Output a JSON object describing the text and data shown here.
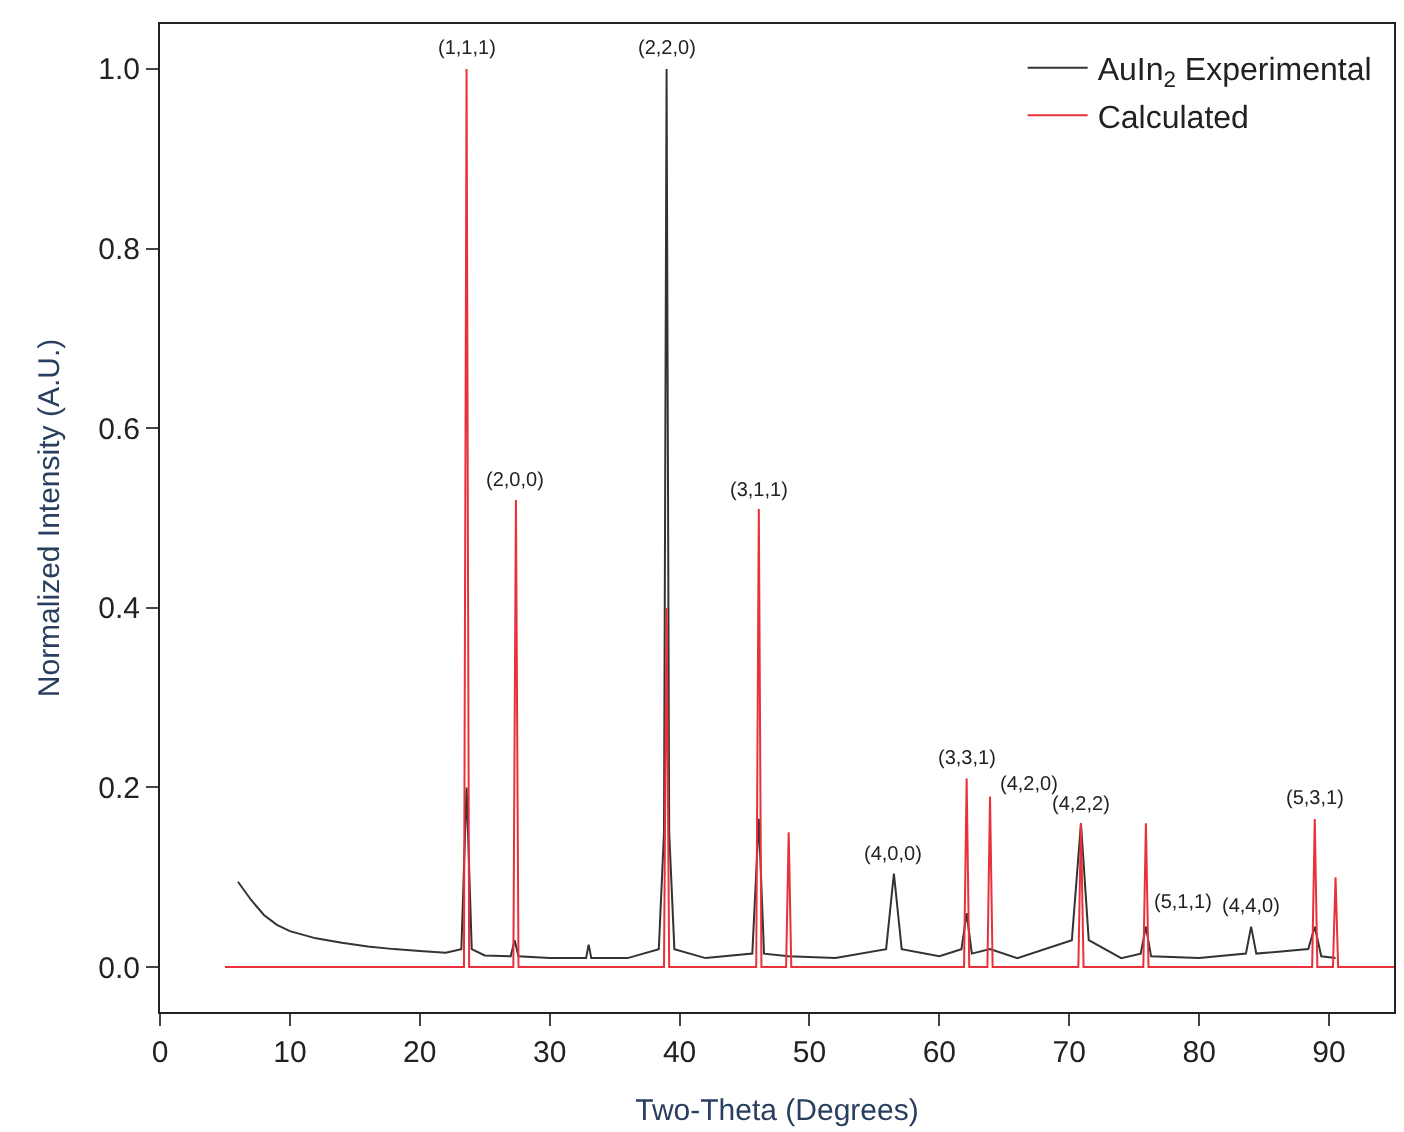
{
  "chart_data": {
    "type": "line",
    "xlabel": "Two-Theta (Degrees)",
    "ylabel": "Normalized Intensity (A.U.)",
    "xlim": [
      0,
      95
    ],
    "xticks": [
      0,
      10,
      20,
      30,
      40,
      50,
      60,
      70,
      80,
      90
    ],
    "ylim": [
      -0.05,
      1.05
    ],
    "yticks": [
      {
        "value": 0,
        "label": "0.0"
      },
      {
        "value": 0.2,
        "label": "0.2"
      },
      {
        "value": 0.4,
        "label": "0.4"
      },
      {
        "value": 0.6,
        "label": "0.6"
      },
      {
        "value": 0.8,
        "label": "0.8"
      },
      {
        "value": 1,
        "label": "1.0"
      }
    ],
    "legend": "top right",
    "marker": "none",
    "line_style": "solid",
    "series": [
      {
        "name": "AuIn$_{2}$ Experimental",
        "color": "#333333",
        "x": [
          6,
          7,
          8,
          9,
          10,
          12,
          14,
          16,
          18,
          20,
          22,
          23.2,
          23.6,
          24.0,
          25,
          27.0,
          27.3,
          27.6,
          30,
          32.8,
          33.0,
          33.2,
          36,
          38.4,
          38.8,
          39.0,
          39.2,
          39.6,
          42,
          45.6,
          46.1,
          46.5,
          48.4,
          52,
          55.9,
          56.5,
          57.1,
          60,
          61.7,
          62.1,
          62.5,
          63.9,
          66,
          70.2,
          70.9,
          71.5,
          74,
          75.5,
          75.9,
          76.3,
          80,
          83.6,
          84.0,
          84.4,
          88.4,
          88.9,
          89.4,
          90.5
        ],
        "values": [
          0.095,
          0.075,
          0.058,
          0.047,
          0.04,
          0.032,
          0.027,
          0.023,
          0.02,
          0.018,
          0.016,
          0.02,
          0.2,
          0.02,
          0.013,
          0.012,
          0.03,
          0.012,
          0.01,
          0.01,
          0.025,
          0.01,
          0.01,
          0.02,
          0.15,
          1.0,
          0.15,
          0.02,
          0.01,
          0.015,
          0.165,
          0.015,
          0.012,
          0.01,
          0.02,
          0.104,
          0.02,
          0.012,
          0.02,
          0.06,
          0.015,
          0.02,
          0.01,
          0.03,
          0.16,
          0.03,
          0.01,
          0.015,
          0.045,
          0.012,
          0.01,
          0.015,
          0.045,
          0.015,
          0.02,
          0.045,
          0.012,
          0.01
        ]
      },
      {
        "name": "Calculated",
        "color": "#e8313a",
        "x": [
          5,
          23.4,
          23.6,
          23.8,
          27.2,
          27.4,
          27.6,
          38.8,
          39.0,
          39.2,
          45.9,
          46.1,
          46.3,
          48.2,
          48.4,
          48.6,
          61.9,
          62.1,
          62.3,
          63.7,
          63.9,
          64.1,
          70.7,
          70.9,
          71.1,
          75.7,
          75.9,
          76.1,
          88.7,
          88.9,
          89.1,
          90.3,
          90.5,
          90.7,
          95
        ],
        "values": [
          0,
          0,
          1.0,
          0,
          0,
          0.52,
          0,
          0,
          0.4,
          0,
          0,
          0.51,
          0,
          0,
          0.15,
          0,
          0,
          0.21,
          0,
          0,
          0.19,
          0,
          0,
          0.16,
          0,
          0,
          0.16,
          0,
          0,
          0.165,
          0,
          0,
          0.1,
          0,
          0
        ]
      }
    ],
    "annotations": [
      {
        "text": "(1,1,1)",
        "x": 23.6,
        "y": 1.0
      },
      {
        "text": "(2,0,0)",
        "x": 27.4,
        "y": 0.52
      },
      {
        "text": "(2,2,0)",
        "x": 39.0,
        "y": 1.0
      },
      {
        "text": "(3,1,1)",
        "x": 46.1,
        "y": 0.51
      },
      {
        "text": "(4,0,0)",
        "x": 56.5,
        "y": 0.104
      },
      {
        "text": "(3,3,1)",
        "x": 62.1,
        "y": 0.21
      },
      {
        "text": "(4,2,0)",
        "x": 63.9,
        "y": 0.19
      },
      {
        "text": "(4,2,2)",
        "x": 70.9,
        "y": 0.16
      },
      {
        "text": "(5,1,1)",
        "x": 75.9,
        "y": 0.045
      },
      {
        "text": "(4,4,0)",
        "x": 84.0,
        "y": 0.045
      },
      {
        "text": "(5,3,1)",
        "x": 88.9,
        "y": 0.165
      }
    ]
  }
}
